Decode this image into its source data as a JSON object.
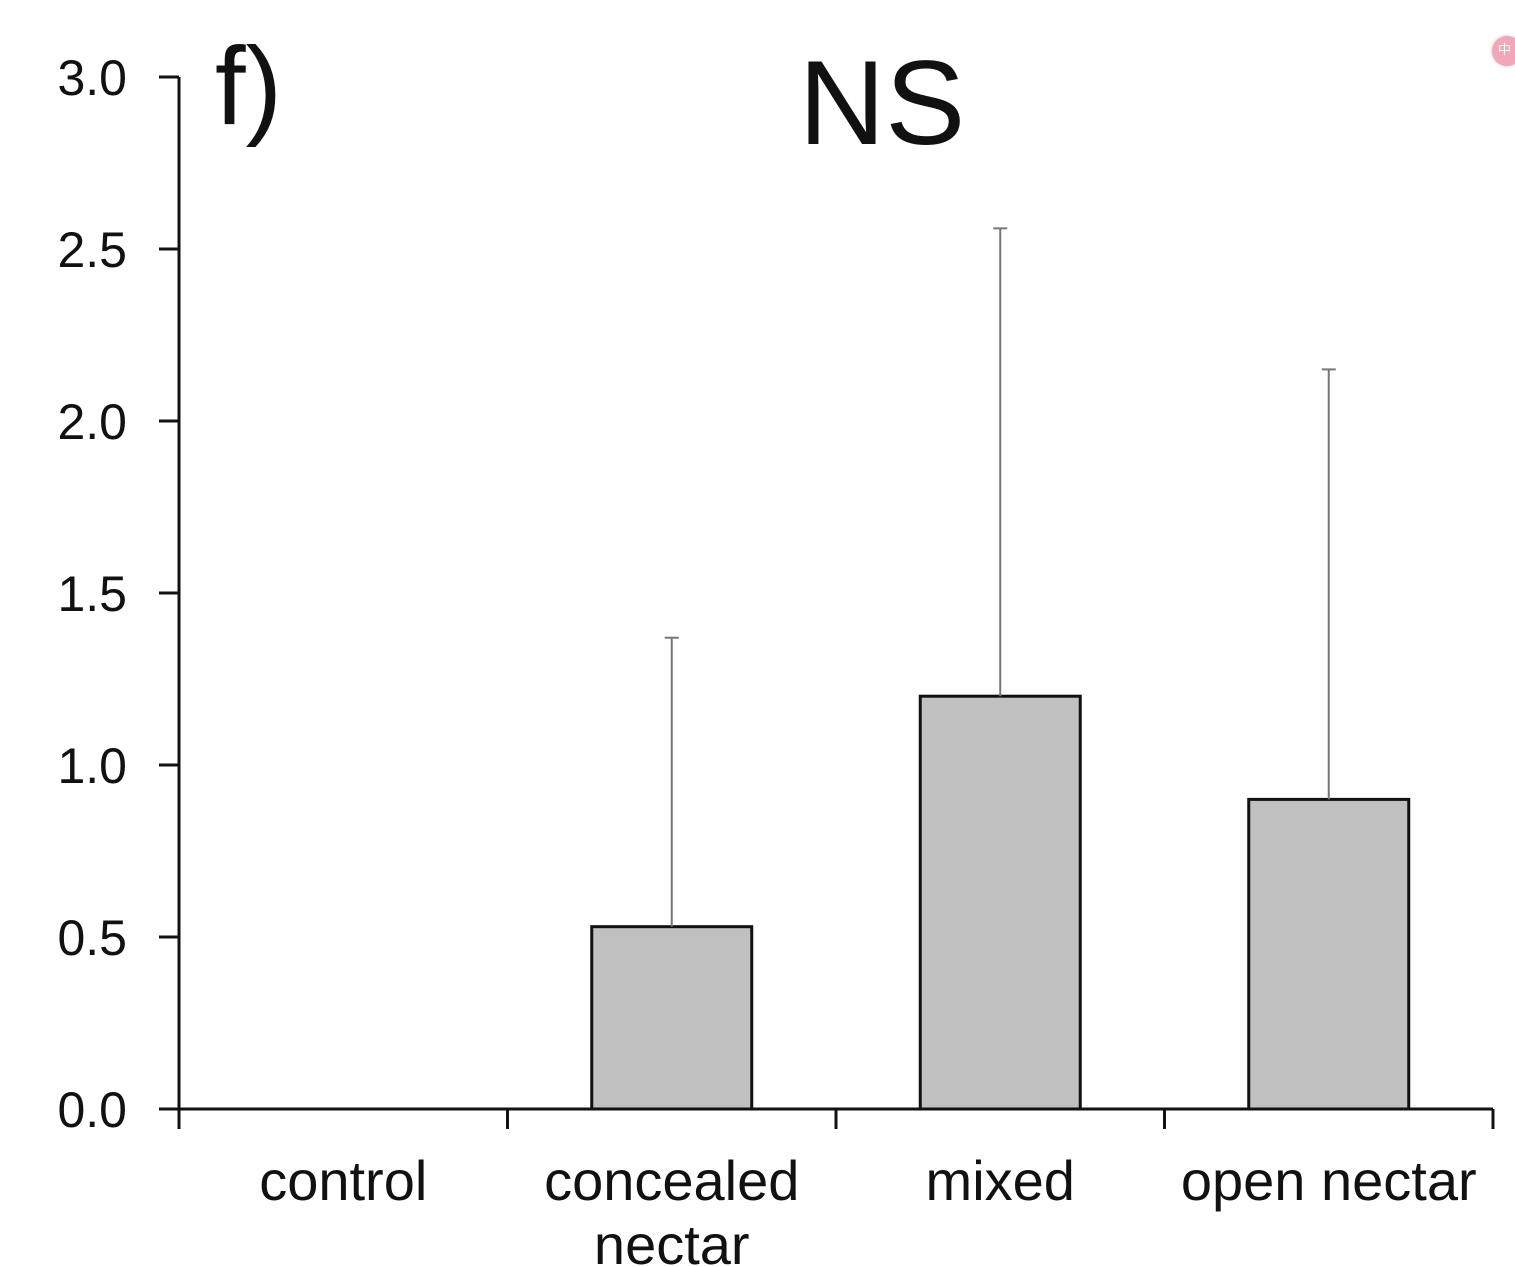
{
  "chart_data": {
    "type": "bar",
    "panel_label": "f)",
    "significance": "NS",
    "categories": [
      {
        "line1": "control",
        "line2": ""
      },
      {
        "line1": "concealed",
        "line2": "nectar"
      },
      {
        "line1": "mixed",
        "line2": ""
      },
      {
        "line1": "open nectar",
        "line2": ""
      }
    ],
    "values": [
      0,
      0.53,
      1.2,
      0.9
    ],
    "error_upper": [
      0,
      1.37,
      2.56,
      2.15
    ],
    "ylim": [
      0,
      3.0
    ],
    "yticks": [
      "0.0",
      "0.5",
      "1.0",
      "1.5",
      "2.0",
      "2.5",
      "3.0"
    ],
    "xlabel": "",
    "ylabel": "",
    "grid": false,
    "bar_color": "#c0c0c0",
    "bar_edge_color": "#111111",
    "errorbar_color": "#777777"
  },
  "ui": {
    "corner_icon": "translate-icon"
  }
}
